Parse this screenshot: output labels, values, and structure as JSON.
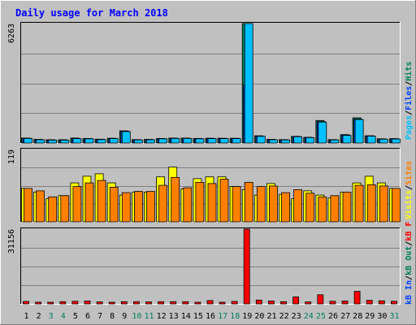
{
  "title": "Daily usage for March 2018",
  "colors": {
    "background": "#c0c0c0",
    "frame_light": "#ffffff",
    "frame_dark": "#808080",
    "grid": "#808080",
    "title": "#0000ff",
    "hits": "#00805c",
    "files": "#0040ff",
    "pages": "#00c0ff",
    "visits": "#ffff00",
    "sites": "#ff8000",
    "kb": "#ff0000",
    "weekend": "#00805c",
    "weekday": "#000000"
  },
  "legends": {
    "top": [
      {
        "text": "Pages",
        "color": "#00c0ff"
      },
      {
        "text": "/",
        "color": "#000000"
      },
      {
        "text": "Files",
        "color": "#0040ff"
      },
      {
        "text": "/",
        "color": "#000000"
      },
      {
        "text": "Hits",
        "color": "#00805c"
      }
    ],
    "middle": [
      {
        "text": "Visits",
        "color": "#ffff00"
      },
      {
        "text": "/",
        "color": "#000000"
      },
      {
        "text": "Sites",
        "color": "#ff8000"
      }
    ],
    "bottom": [
      {
        "text": "kB In",
        "color": "#0040ff"
      },
      {
        "text": "/",
        "color": "#000000"
      },
      {
        "text": "kB Out",
        "color": "#00805c"
      },
      {
        "text": "/",
        "color": "#000000"
      },
      {
        "text": "kB F",
        "color": "#ff0000"
      }
    ]
  },
  "chart_data": {
    "type": "bar",
    "title": "Daily usage for March 2018",
    "categories": [
      "1",
      "2",
      "3",
      "4",
      "5",
      "6",
      "7",
      "8",
      "9",
      "10",
      "11",
      "12",
      "13",
      "14",
      "15",
      "16",
      "17",
      "18",
      "19",
      "20",
      "21",
      "22",
      "23",
      "24",
      "25",
      "26",
      "27",
      "28",
      "29",
      "30",
      "31"
    ],
    "weekend_days": [
      3,
      4,
      10,
      11,
      17,
      18,
      24,
      25,
      31
    ],
    "panels": [
      {
        "name": "hits-files-pages",
        "ymax_label": "6263",
        "ymax": 6263,
        "series": [
          {
            "name": "Hits",
            "color": "#00805c",
            "values": [
              260,
              190,
              170,
              170,
              260,
              240,
              200,
              250,
              640,
              180,
              190,
              240,
              260,
              260,
              240,
              250,
              250,
              250,
              6263,
              380,
              190,
              180,
              350,
              300,
              1180,
              180,
              440,
              1320,
              380,
              220,
              230
            ]
          },
          {
            "name": "Files",
            "color": "#0040ff",
            "values": [
              250,
              180,
              160,
              160,
              240,
              230,
              190,
              240,
              620,
              170,
              180,
              230,
              250,
              250,
              230,
              240,
              240,
              240,
              3050,
              360,
              180,
              170,
              340,
              290,
              1120,
              170,
              420,
              1250,
              370,
              210,
              220
            ]
          },
          {
            "name": "Pages",
            "color": "#00c0ff",
            "values": [
              240,
              170,
              150,
              150,
              230,
              220,
              180,
              230,
              600,
              160,
              170,
              220,
              240,
              240,
              220,
              230,
              230,
              230,
              6263,
              350,
              170,
              160,
              330,
              280,
              1100,
              160,
              400,
              1230,
              360,
              200,
              210
            ]
          }
        ]
      },
      {
        "name": "visits-sites",
        "ymax_label": "119",
        "ymax": 119,
        "series": [
          {
            "name": "Visits",
            "color": "#ffff00",
            "values": [
              55,
              49,
              38,
              43,
              64,
              75,
              79,
              64,
              44,
              49,
              49,
              74,
              90,
              54,
              71,
              74,
              74,
              58,
              53,
              44,
              63,
              45,
              38,
              51,
              44,
              39,
              49,
              64,
              75,
              64,
              55
            ]
          },
          {
            "name": "Sites",
            "color": "#ff8000",
            "values": [
              55,
              51,
              41,
              43,
              58,
              64,
              68,
              57,
              48,
              50,
              50,
              60,
              73,
              56,
              65,
              63,
              70,
              58,
              65,
              58,
              59,
              48,
              53,
              47,
              41,
              43,
              49,
              60,
              61,
              59,
              55
            ]
          }
        ]
      },
      {
        "name": "kbytes",
        "ymax_label": "31156",
        "ymax": 31156,
        "series": [
          {
            "name": "kB F",
            "color": "#ff0000",
            "values": [
              1000,
              700,
              600,
              900,
              1100,
              1200,
              800,
              600,
              900,
              900,
              800,
              900,
              900,
              900,
              600,
              1400,
              600,
              1000,
              31156,
              1600,
              1200,
              900,
              2900,
              800,
              3800,
              1100,
              1200,
              5200,
              1500,
              1300,
              1100
            ]
          }
        ]
      }
    ]
  }
}
